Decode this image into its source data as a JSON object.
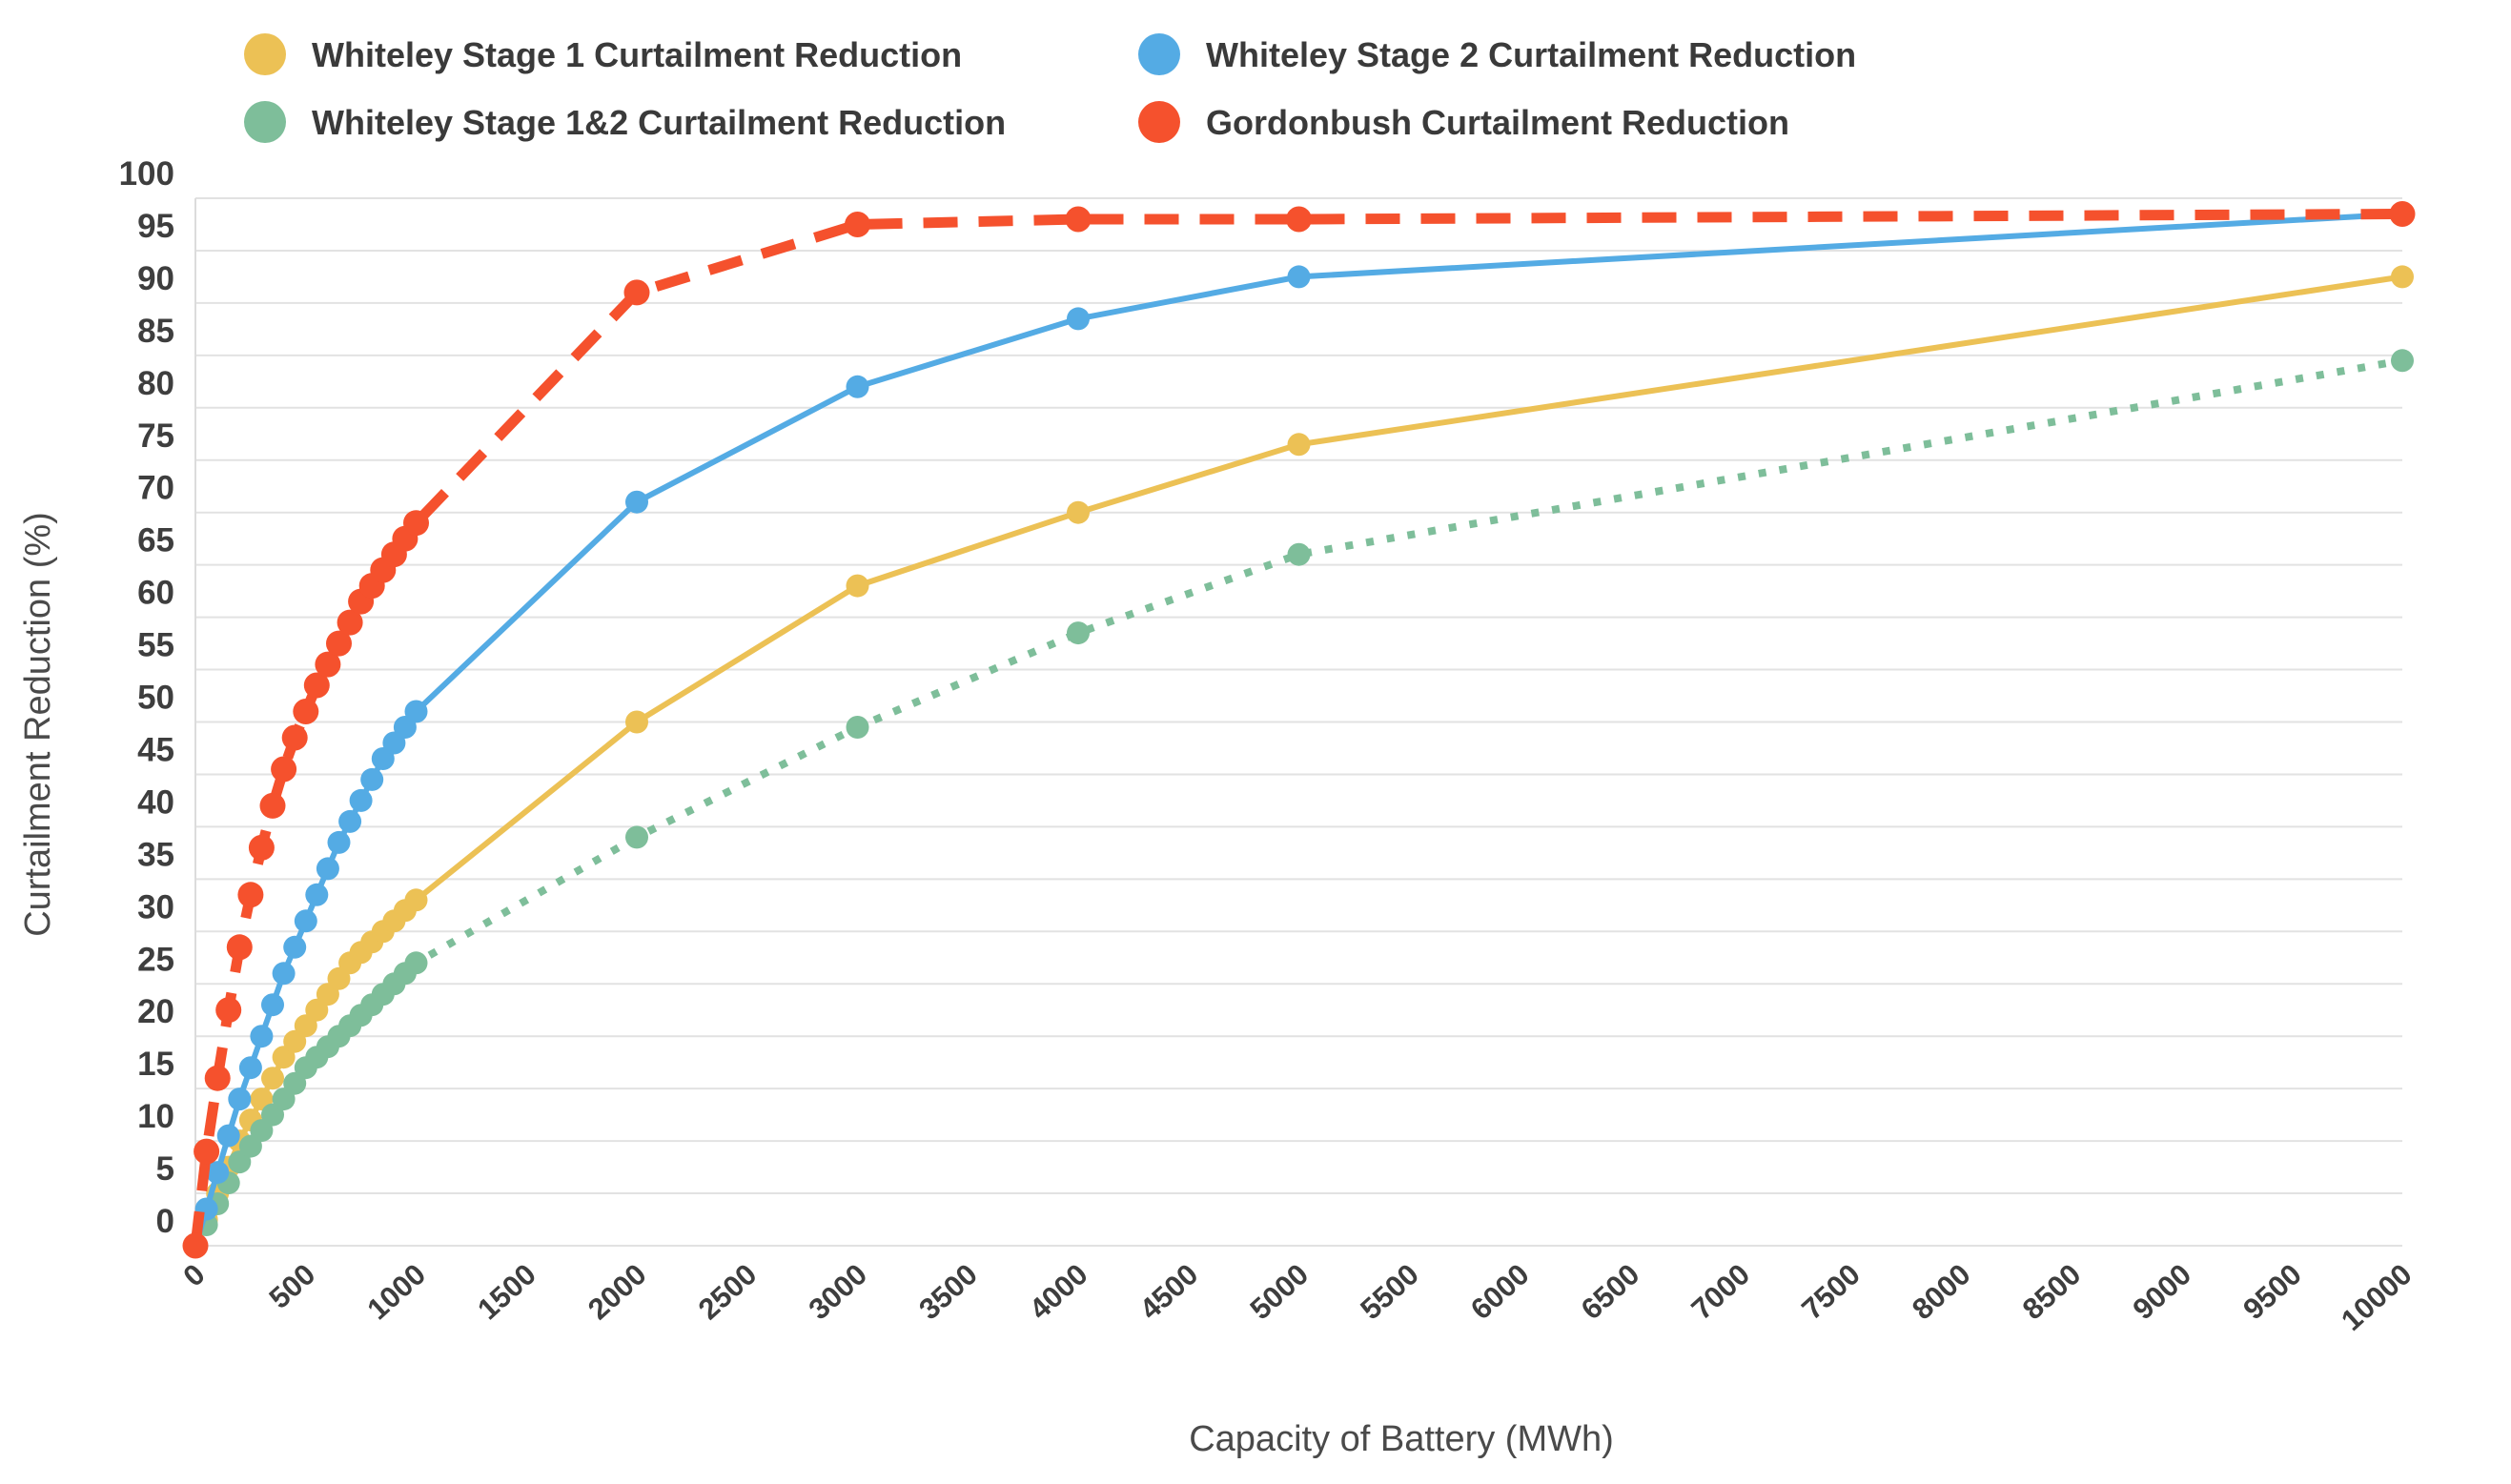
{
  "chart_data": {
    "type": "line",
    "title": "",
    "xlabel": "Capacity of Battery (MWh)",
    "ylabel": "Curtailment Reduction (%)",
    "xlim": [
      0,
      10000
    ],
    "ylim": [
      0,
      100
    ],
    "grid": true,
    "legend_position": "top",
    "x_ticks": [
      0,
      500,
      1000,
      1500,
      2000,
      2500,
      3000,
      3500,
      4000,
      4500,
      5000,
      5500,
      6000,
      6500,
      7000,
      7500,
      8000,
      8500,
      9000,
      9500,
      10000
    ],
    "y_ticks": [
      0,
      5,
      10,
      15,
      20,
      25,
      30,
      35,
      40,
      45,
      50,
      55,
      60,
      65,
      70,
      75,
      80,
      85,
      90,
      95,
      100
    ],
    "x": [
      0,
      50,
      100,
      150,
      200,
      250,
      300,
      350,
      400,
      450,
      500,
      550,
      600,
      650,
      700,
      750,
      800,
      850,
      900,
      950,
      1000,
      2000,
      3000,
      4000,
      5000,
      10000
    ],
    "series": [
      {
        "name": "Whiteley Stage 1 Curtailment Reduction",
        "color": "#ecc155",
        "style": "solid",
        "values": [
          0,
          2.5,
          5,
          7.5,
          10,
          12,
          14,
          16,
          18,
          19.5,
          21,
          22.5,
          24,
          25.5,
          27,
          28,
          29,
          30,
          31,
          32,
          33,
          50,
          63,
          70,
          76.5,
          92.5
        ]
      },
      {
        "name": "Whiteley Stage 2 Curtailment Reduction",
        "color": "#54abe4",
        "style": "solid",
        "values": [
          0,
          3.5,
          7,
          10.5,
          14,
          17,
          20,
          23,
          26,
          28.5,
          31,
          33.5,
          36,
          38.5,
          40.5,
          42.5,
          44.5,
          46.5,
          48,
          49.5,
          51,
          71,
          82,
          88.5,
          92.5,
          98.5
        ]
      },
      {
        "name": "Whiteley Stage 1&2 Curtailment Reduction",
        "color": "#7ebe9a",
        "style": "dotted",
        "values": [
          0,
          2,
          4,
          6,
          8,
          9.5,
          11,
          12.5,
          14,
          15.5,
          17,
          18,
          19,
          20,
          21,
          22,
          23,
          24,
          25,
          26,
          27,
          39,
          49.5,
          58.5,
          66,
          84.5
        ]
      },
      {
        "name": "Gordonbush Curtailment Reduction",
        "color": "#f5512d",
        "style": "dashed",
        "values": [
          0,
          9,
          16,
          22.5,
          28.5,
          33.5,
          38,
          42,
          45.5,
          48.5,
          51,
          53.5,
          55.5,
          57.5,
          59.5,
          61.5,
          63,
          64.5,
          66,
          67.5,
          69,
          91,
          97.5,
          98,
          98,
          98.5
        ]
      }
    ]
  }
}
